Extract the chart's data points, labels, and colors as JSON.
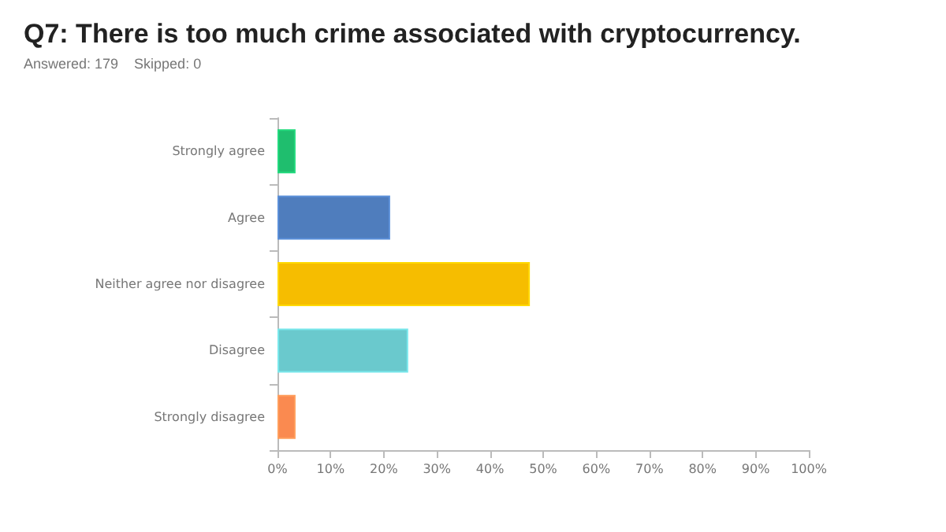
{
  "chart_data": {
    "type": "bar",
    "orientation": "horizontal",
    "title": "Q7: There is too much crime associated with cryptocurrency.",
    "subtitle": "Answered: 179    Skipped: 0",
    "categories": [
      "Strongly agree",
      "Agree",
      "Neither agree nor disagree",
      "Disagree",
      "Strongly disagree"
    ],
    "values": [
      3.4,
      21.2,
      47.5,
      24.6,
      3.4
    ],
    "colors": [
      "#1fbe6e",
      "#4f7dbd",
      "#f6bd00",
      "#6ac9cd",
      "#fa8a50"
    ],
    "xlim": [
      0,
      100
    ],
    "xticks": [
      {
        "value": 0,
        "label": "0%"
      },
      {
        "value": 10,
        "label": "10%"
      },
      {
        "value": 20,
        "label": "20%"
      },
      {
        "value": 30,
        "label": "30%"
      },
      {
        "value": 40,
        "label": "40%"
      },
      {
        "value": 50,
        "label": "50%"
      },
      {
        "value": 60,
        "label": "60%"
      },
      {
        "value": 70,
        "label": "70%"
      },
      {
        "value": 80,
        "label": "80%"
      },
      {
        "value": 90,
        "label": "90%"
      },
      {
        "value": 100,
        "label": "100%"
      }
    ],
    "data_labels": false
  }
}
